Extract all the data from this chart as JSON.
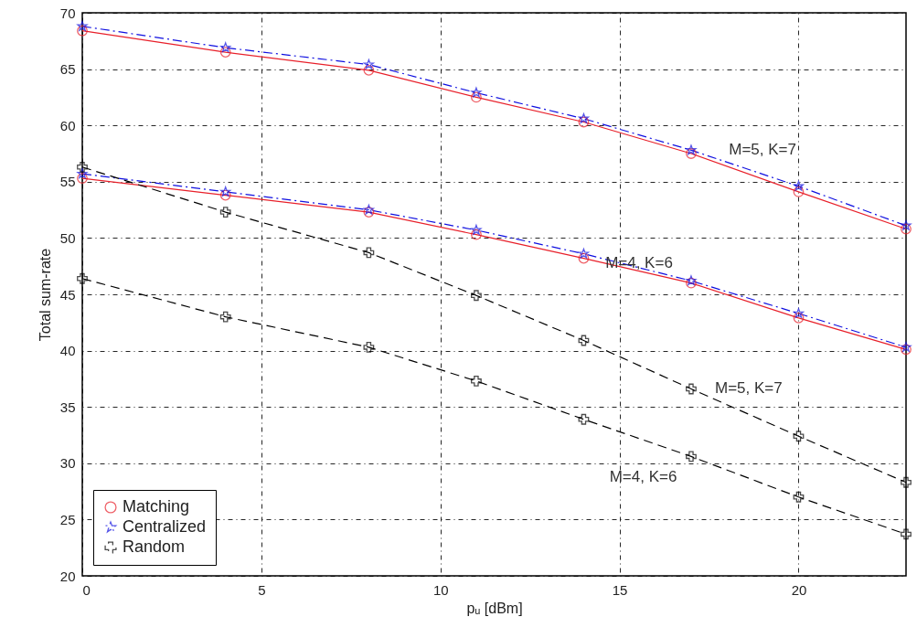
{
  "chart_data": {
    "type": "line",
    "xlabel": "pᵤ [dBm]",
    "ylabel": "Total sum-rate",
    "x": [
      0,
      4,
      8,
      11,
      14,
      17,
      20,
      23
    ],
    "xlim": [
      0,
      23
    ],
    "xticks": [
      0,
      5,
      10,
      15,
      20
    ],
    "ylim": [
      20,
      70
    ],
    "yticks": [
      20,
      25,
      30,
      35,
      40,
      45,
      50,
      55,
      60,
      65,
      70
    ],
    "grid": true,
    "legend": "bottom left",
    "series": [
      {
        "name": "Matching",
        "color": "#e8202a",
        "marker": "circle",
        "line_style": "solid",
        "values": [
          68.4,
          66.5,
          64.9,
          62.5,
          60.3,
          57.5,
          54.1,
          50.8
        ]
      },
      {
        "name": "Centralized",
        "color": "#1010e0",
        "marker": "star",
        "line_style": "dashdot",
        "values": [
          68.8,
          66.9,
          65.4,
          62.9,
          60.6,
          57.8,
          54.6,
          51.1
        ]
      },
      {
        "color": "#e8202a",
        "marker": "circle",
        "line_style": "solid",
        "values": [
          55.3,
          53.8,
          52.3,
          50.3,
          48.2,
          46.0,
          42.9,
          40.1
        ]
      },
      {
        "color": "#1010e0",
        "marker": "star",
        "line_style": "dashdot",
        "values": [
          55.7,
          54.1,
          52.5,
          50.7,
          48.6,
          46.2,
          43.3,
          40.3
        ]
      },
      {
        "name": "Random",
        "color": "#000000",
        "marker": "cross",
        "line_style": "dashed",
        "values": [
          56.3,
          52.3,
          48.7,
          44.9,
          40.9,
          36.6,
          32.4,
          28.3
        ]
      },
      {
        "color": "#000000",
        "marker": "cross",
        "line_style": "dashed",
        "values": [
          46.4,
          43.0,
          40.3,
          37.3,
          33.9,
          30.6,
          27.0,
          23.7
        ]
      }
    ],
    "annotations": [
      "M=5, K=7",
      "M=4, K=6",
      "M=5, K=7",
      "M=4, K=6"
    ]
  }
}
